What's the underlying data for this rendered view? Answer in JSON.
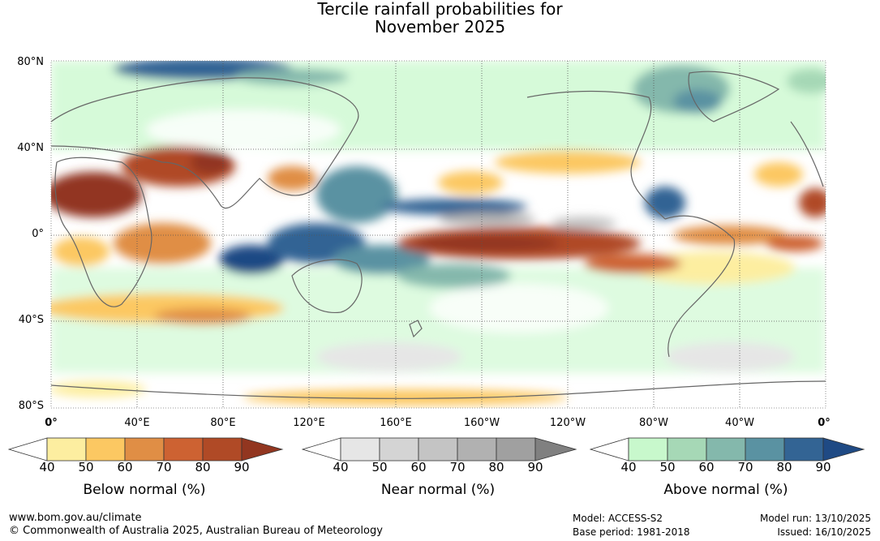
{
  "title_line1": "Tercile rainfall probabilities for",
  "title_line2": "November 2025",
  "lat_labels": [
    "80°N",
    "40°N",
    "0°",
    "40°S",
    "80°S"
  ],
  "lon_labels": [
    "0°",
    "40°E",
    "80°E",
    "120°E",
    "160°E",
    "160°W",
    "120°W",
    "80°W",
    "40°W",
    "0°"
  ],
  "legends": {
    "below": {
      "name": "Below normal (%)",
      "ticks": [
        "40",
        "50",
        "60",
        "70",
        "80",
        "90"
      ],
      "colors": [
        "#ffffff",
        "#fdeea0",
        "#fcc862",
        "#e08e45",
        "#cd6232",
        "#b04a26",
        "#923620"
      ]
    },
    "near": {
      "name": "Near normal (%)",
      "ticks": [
        "40",
        "50",
        "60",
        "70",
        "80",
        "90"
      ],
      "colors": [
        "#ffffff",
        "#e6e6e6",
        "#d4d4d4",
        "#c4c4c4",
        "#b1b1b1",
        "#a0a0a0",
        "#808080"
      ]
    },
    "above": {
      "name": "Above normal (%)",
      "ticks": [
        "40",
        "50",
        "60",
        "70",
        "80",
        "90"
      ],
      "colors": [
        "#ffffff",
        "#c8f8cc",
        "#a6d8b6",
        "#84b8ac",
        "#5a92a2",
        "#336494",
        "#1f4a84"
      ]
    }
  },
  "footer": {
    "website": "www.bom.gov.au/climate",
    "copyright": "© Commonwealth of Australia 2025, Australian Bureau of Meteorology",
    "model": "Model: ACCESS-S2",
    "base_period": "Base period: 1981-2018",
    "model_run": "Model run: 13/10/2025",
    "issued": "Issued: 16/10/2025"
  }
}
